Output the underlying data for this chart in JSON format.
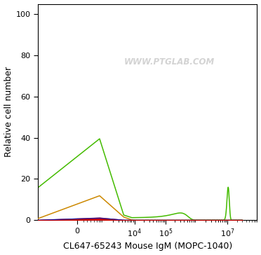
{
  "xlabel": "CL647-65243 Mouse IgM (MOPC-1040)",
  "ylabel": "Relative cell number",
  "ylim": [
    0,
    105
  ],
  "yticks": [
    0,
    20,
    40,
    60,
    80,
    100
  ],
  "background_color": "#ffffff",
  "watermark": "WWW.PTGLAB.COM",
  "red_fill_color": "#cc0000",
  "blue_line_color": "#1a1aaa",
  "orange_line_color": "#cc8800",
  "green_line_color": "#44bb00",
  "figsize": [
    3.72,
    3.64
  ],
  "dpi": 100,
  "linthresh": 500,
  "linscale": 0.5
}
